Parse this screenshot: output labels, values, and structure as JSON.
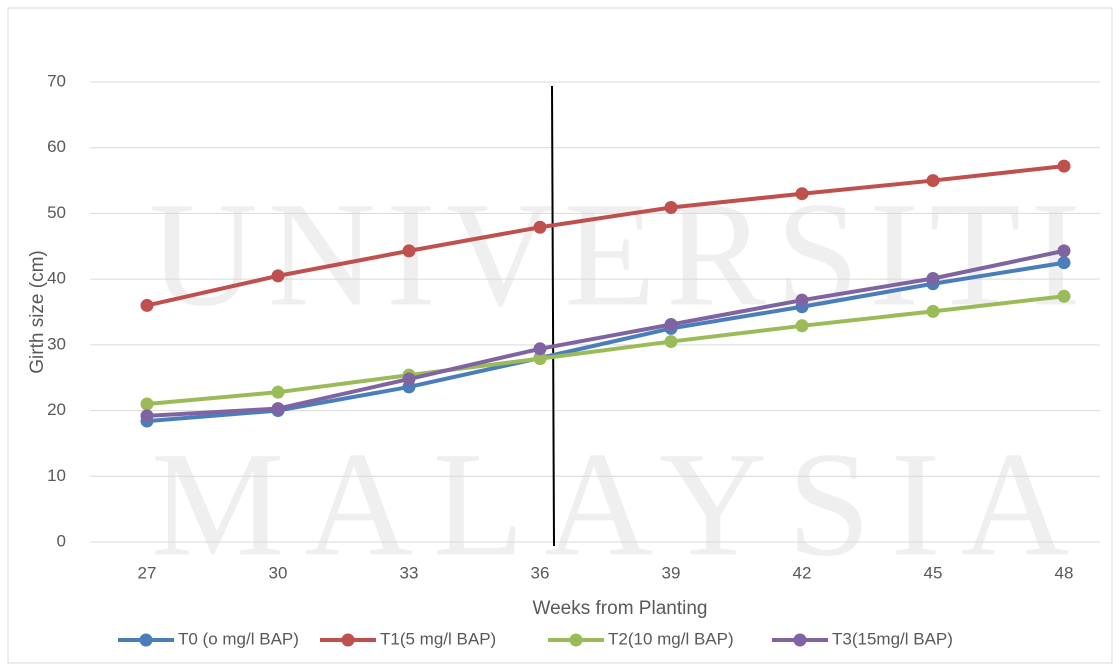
{
  "chart_data": {
    "type": "line",
    "watermark": [
      "UNIVERSITI",
      "MALAYSIA"
    ],
    "xlabel": "Weeks from Planting",
    "ylabel": "Girth size (cm)",
    "categories": [
      "27",
      "30",
      "33",
      "36",
      "39",
      "42",
      "45",
      "48"
    ],
    "series": [
      {
        "name": "T0 (o mg/l BAP)",
        "color": "#4a7ebb",
        "values": [
          18.4,
          20.0,
          23.6,
          28.0,
          32.5,
          35.8,
          39.3,
          42.5
        ]
      },
      {
        "name": "T1(5 mg/l BAP)",
        "color": "#c0504d",
        "values": [
          36.0,
          40.5,
          44.3,
          47.9,
          50.9,
          53.0,
          55.0,
          57.2
        ]
      },
      {
        "name": "T2(10 mg/l BAP)",
        "color": "#9bbb59",
        "values": [
          21.0,
          22.8,
          25.4,
          27.9,
          30.5,
          32.9,
          35.1,
          37.4
        ]
      },
      {
        "name": "T3(15mg/l BAP)",
        "color": "#8064a2",
        "values": [
          19.2,
          20.3,
          24.8,
          29.4,
          33.1,
          36.8,
          40.1,
          44.3
        ]
      }
    ],
    "ylim": [
      0,
      70
    ],
    "yticks": [
      0,
      10,
      20,
      30,
      40,
      50,
      60,
      70
    ],
    "grid": true,
    "legend": "bottom"
  }
}
